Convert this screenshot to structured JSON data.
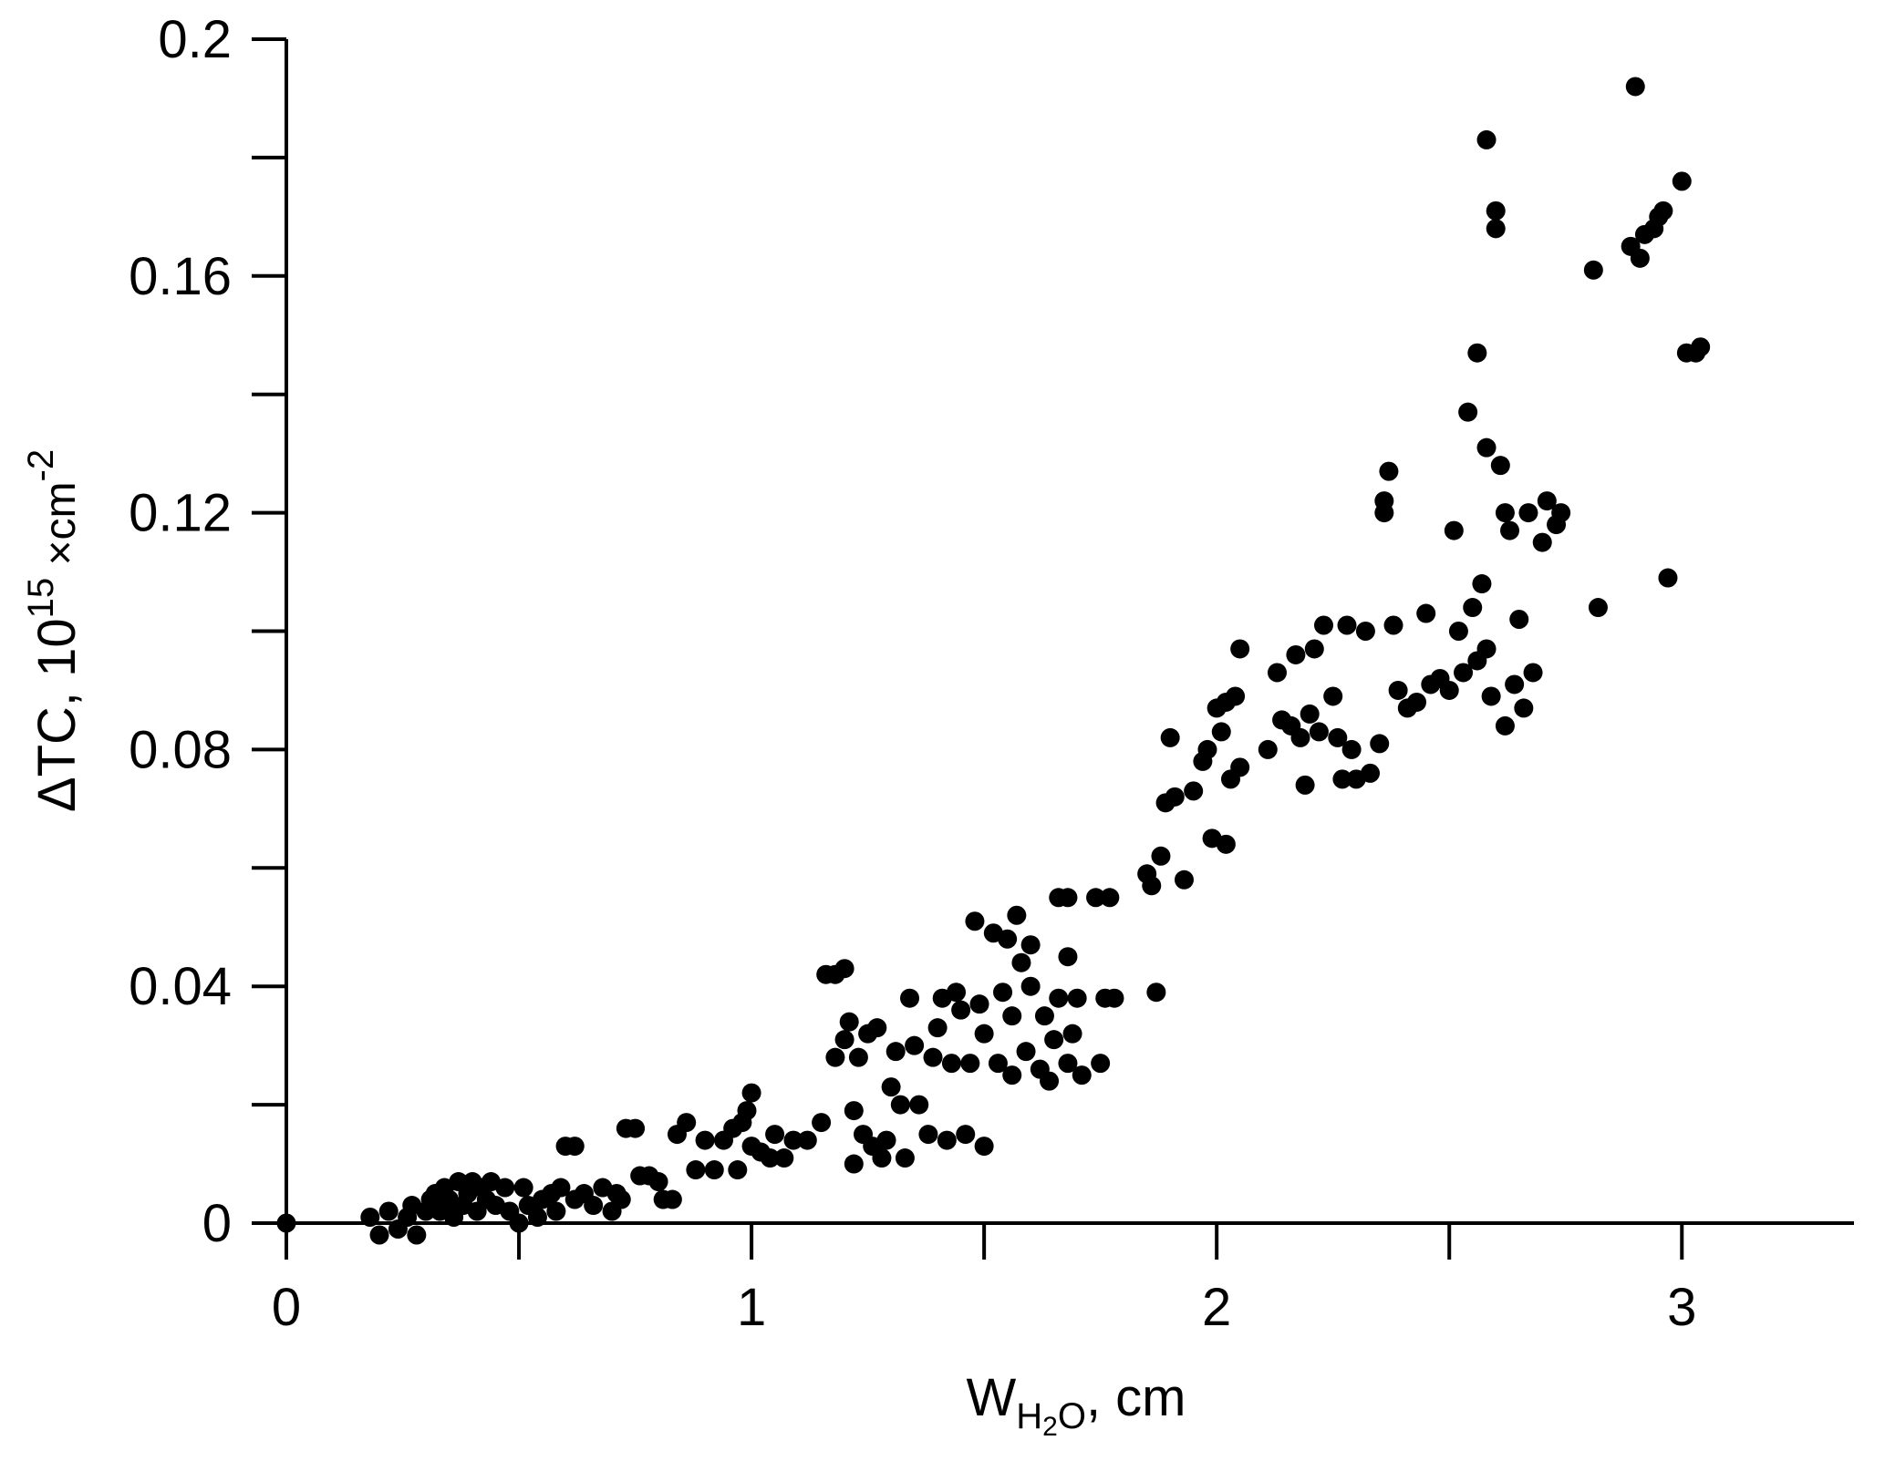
{
  "chart_data": {
    "type": "scatter",
    "xlabel": [
      "W",
      "H",
      "2",
      "O",
      ", cm"
    ],
    "ylabel": [
      "ΔTC, 10",
      "15",
      " ×cm",
      "-2"
    ],
    "color": "#000000",
    "xlim": [
      0,
      3.37
    ],
    "xticks": [
      0,
      1,
      2,
      3
    ],
    "xminorticks": [
      0.5,
      1.5,
      2.5
    ],
    "ylim": [
      0,
      0.2
    ],
    "yticks": [
      0,
      0.04,
      0.08,
      0.12,
      0.16,
      0.2
    ],
    "yminorticks": [
      0.02,
      0.06,
      0.1,
      0.14,
      0.18
    ],
    "x": [
      0,
      0.18,
      0.2,
      0.22,
      0.24,
      0.26,
      0.27,
      0.28,
      0.3,
      0.31,
      0.32,
      0.33,
      0.34,
      0.35,
      0.36,
      0.37,
      0.38,
      0.39,
      0.4,
      0.41,
      0.42,
      0.43,
      0.44,
      0.45,
      0.47,
      0.48,
      0.5,
      0.51,
      0.52,
      0.54,
      0.55,
      0.57,
      0.58,
      0.59,
      0.6,
      0.62,
      0.62,
      0.64,
      0.66,
      0.68,
      0.7,
      0.71,
      0.72,
      0.73,
      0.75,
      0.76,
      0.78,
      0.8,
      0.81,
      0.83,
      0.84,
      0.86,
      0.88,
      0.9,
      0.92,
      0.94,
      0.96,
      0.97,
      0.98,
      0.99,
      1.0,
      1.0,
      1.02,
      1.04,
      1.05,
      1.07,
      1.09,
      1.12,
      1.15,
      1.16,
      1.18,
      1.2,
      1.18,
      1.2,
      1.21,
      1.22,
      1.22,
      1.24,
      1.23,
      1.25,
      1.26,
      1.27,
      1.28,
      1.29,
      1.3,
      1.31,
      1.32,
      1.33,
      1.34,
      1.35,
      1.36,
      1.38,
      1.39,
      1.4,
      1.41,
      1.42,
      1.43,
      1.44,
      1.45,
      1.46,
      1.47,
      1.48,
      1.49,
      1.5,
      1.5,
      1.52,
      1.53,
      1.54,
      1.55,
      1.56,
      1.56,
      1.57,
      1.58,
      1.59,
      1.6,
      1.6,
      1.62,
      1.63,
      1.64,
      1.65,
      1.66,
      1.66,
      1.68,
      1.69,
      1.7,
      1.71,
      1.68,
      1.68,
      1.75,
      1.76,
      1.78,
      1.74,
      1.77,
      1.85,
      1.86,
      1.87,
      1.88,
      1.89,
      1.9,
      1.91,
      1.93,
      1.95,
      1.97,
      1.98,
      1.99,
      2.0,
      2.01,
      2.02,
      2.02,
      2.03,
      2.04,
      2.05,
      2.05,
      2.11,
      2.13,
      2.14,
      2.16,
      2.17,
      2.18,
      2.19,
      2.2,
      2.21,
      2.22,
      2.23,
      2.25,
      2.26,
      2.27,
      2.28,
      2.29,
      2.3,
      2.32,
      2.33,
      2.35,
      2.36,
      2.36,
      2.37,
      2.38,
      2.39,
      2.41,
      2.43,
      2.45,
      2.46,
      2.48,
      2.5,
      2.51,
      2.52,
      2.53,
      2.54,
      2.55,
      2.56,
      2.56,
      2.57,
      2.58,
      2.58,
      2.58,
      2.59,
      2.6,
      2.6,
      2.61,
      2.62,
      2.62,
      2.63,
      2.64,
      2.65,
      2.66,
      2.67,
      2.68,
      2.7,
      2.71,
      2.73,
      2.74,
      2.81,
      2.82,
      2.89,
      2.9,
      2.91,
      2.92,
      2.94,
      2.95,
      2.96,
      2.97,
      3.0,
      3.01,
      3.03,
      3.04
    ],
    "y": [
      0,
      0.001,
      -0.002,
      0.002,
      -0.001,
      0.001,
      0.003,
      -0.002,
      0.002,
      0.004,
      0.005,
      0.002,
      0.006,
      0.004,
      0.001,
      0.007,
      0.003,
      0.005,
      0.007,
      0.002,
      0.006,
      0.004,
      0.007,
      0.003,
      0.006,
      0.002,
      0,
      0.006,
      0.003,
      0.001,
      0.004,
      0.005,
      0.002,
      0.006,
      0.013,
      0.013,
      0.004,
      0.005,
      0.003,
      0.006,
      0.002,
      0.005,
      0.004,
      0.016,
      0.016,
      0.008,
      0.008,
      0.007,
      0.004,
      0.004,
      0.015,
      0.017,
      0.009,
      0.014,
      0.009,
      0.014,
      0.016,
      0.009,
      0.017,
      0.019,
      0.022,
      0.013,
      0.012,
      0.011,
      0.015,
      0.011,
      0.014,
      0.014,
      0.017,
      0.042,
      0.042,
      0.043,
      0.028,
      0.031,
      0.034,
      0.019,
      0.01,
      0.015,
      0.028,
      0.032,
      0.013,
      0.033,
      0.011,
      0.014,
      0.023,
      0.029,
      0.02,
      0.011,
      0.038,
      0.03,
      0.02,
      0.015,
      0.028,
      0.033,
      0.038,
      0.014,
      0.027,
      0.039,
      0.036,
      0.015,
      0.027,
      0.051,
      0.037,
      0.013,
      0.032,
      0.049,
      0.027,
      0.039,
      0.048,
      0.035,
      0.025,
      0.052,
      0.044,
      0.029,
      0.04,
      0.047,
      0.026,
      0.035,
      0.024,
      0.031,
      0.038,
      0.055,
      0.027,
      0.032,
      0.038,
      0.025,
      0.055,
      0.045,
      0.027,
      0.038,
      0.038,
      0.055,
      0.055,
      0.059,
      0.057,
      0.039,
      0.062,
      0.071,
      0.082,
      0.072,
      0.058,
      0.073,
      0.078,
      0.08,
      0.065,
      0.087,
      0.083,
      0.088,
      0.064,
      0.075,
      0.089,
      0.077,
      0.097,
      0.08,
      0.093,
      0.085,
      0.084,
      0.096,
      0.082,
      0.074,
      0.086,
      0.097,
      0.083,
      0.101,
      0.089,
      0.082,
      0.075,
      0.101,
      0.08,
      0.075,
      0.1,
      0.076,
      0.081,
      0.122,
      0.12,
      0.127,
      0.101,
      0.09,
      0.087,
      0.088,
      0.103,
      0.091,
      0.092,
      0.09,
      0.117,
      0.1,
      0.093,
      0.137,
      0.104,
      0.147,
      0.095,
      0.108,
      0.131,
      0.097,
      0.183,
      0.089,
      0.171,
      0.168,
      0.128,
      0.12,
      0.084,
      0.117,
      0.091,
      0.102,
      0.087,
      0.12,
      0.093,
      0.115,
      0.122,
      0.118,
      0.12,
      0.161,
      0.104,
      0.165,
      0.192,
      0.163,
      0.167,
      0.168,
      0.17,
      0.171,
      0.109,
      0.176,
      0.147,
      0.147,
      0.148
    ]
  }
}
